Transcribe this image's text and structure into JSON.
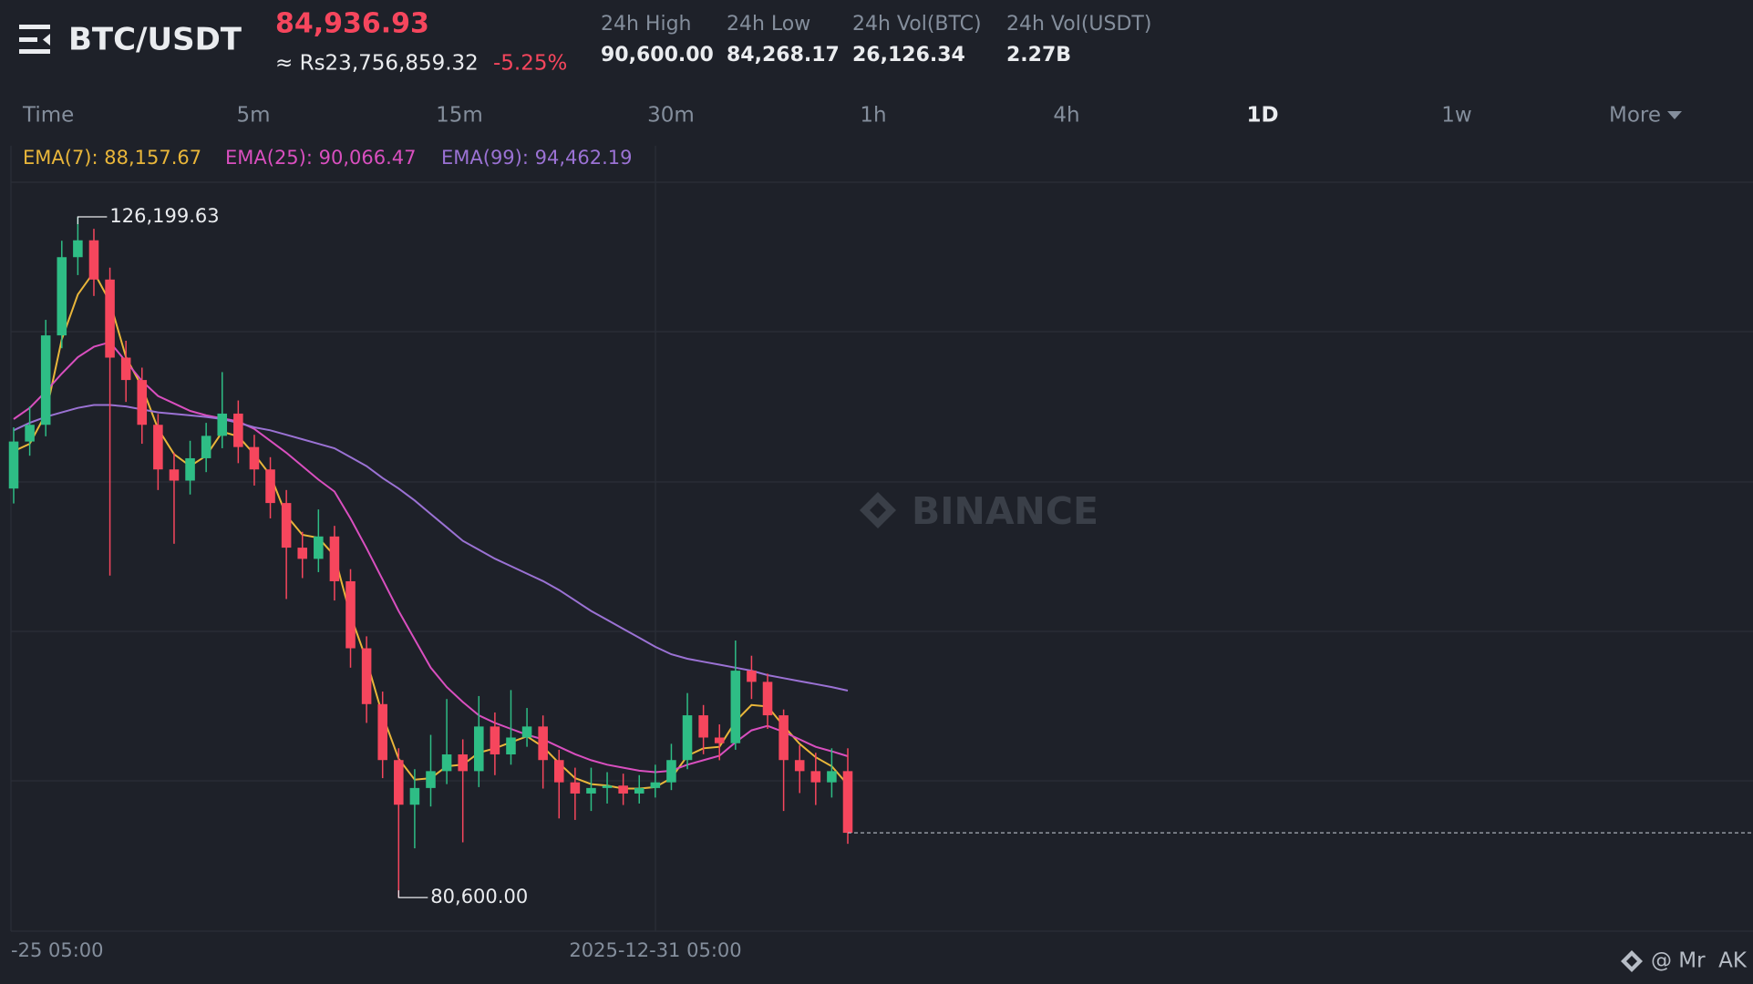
{
  "header": {
    "symbol": "BTC/USDT",
    "price": "84,936.93",
    "fiat_price": "≈ Rs23,756,859.32",
    "change": "-5.25%",
    "stats": [
      {
        "label": "24h High",
        "value": "90,600.00"
      },
      {
        "label": "24h Low",
        "value": "84,268.17"
      },
      {
        "label": "24h Vol(BTC)",
        "value": "26,126.34"
      },
      {
        "label": "24h Vol(USDT)",
        "value": "2.27B"
      }
    ]
  },
  "tabs": [
    "Time",
    "5m",
    "15m",
    "30m",
    "1h",
    "4h",
    "1D",
    "1w",
    "More"
  ],
  "active_tab": 6,
  "watermark": "BINANCE",
  "footer": "@ Mr  AK",
  "chart_data": {
    "type": "candlestick",
    "up_color": "#2ebd85",
    "down_color": "#f6465d",
    "ylim": [
      78350,
      128520
    ],
    "x_labels": [
      "-25 05:00",
      "2025-12-31 05:00"
    ],
    "max_label": "126,199.63",
    "min_label": "80,600.00",
    "candles": {
      "open": [
        108000,
        111150,
        112270,
        118260,
        123500,
        124630,
        122000,
        116770,
        115270,
        112270,
        109280,
        108530,
        110030,
        111530,
        113020,
        110780,
        109280,
        107030,
        104040,
        103290,
        104790,
        101790,
        97300,
        93560,
        89810,
        86820,
        87940,
        89070,
        90190,
        89070,
        92060,
        90190,
        91320,
        92060,
        89810,
        88320,
        87570,
        87940,
        88100,
        87570,
        87940,
        88320,
        89810,
        92810,
        91320,
        90940,
        95800,
        95050,
        92810,
        89810,
        89070,
        88320,
        89070
      ],
      "high": [
        112100,
        113500,
        119300,
        124600,
        126199.63,
        125400,
        122800,
        117900,
        116100,
        113000,
        110400,
        111200,
        112400,
        115800,
        113900,
        111600,
        110100,
        107900,
        105100,
        106600,
        105500,
        102600,
        98100,
        94400,
        90600,
        89200,
        91500,
        93900,
        91200,
        94100,
        93000,
        94500,
        93300,
        92800,
        90500,
        89300,
        89300,
        89000,
        88900,
        88800,
        89500,
        90900,
        94300,
        93500,
        92200,
        97820,
        96800,
        95600,
        93200,
        90800,
        90300,
        90600,
        90600
      ],
      "low": [
        107000,
        110200,
        111500,
        117400,
        122300,
        120900,
        102170,
        113800,
        111000,
        107900,
        104300,
        107600,
        109100,
        110700,
        109700,
        108200,
        106000,
        100600,
        102000,
        102400,
        100500,
        96000,
        92300,
        88600,
        80600,
        83900,
        86700,
        88200,
        84300,
        88000,
        88800,
        89500,
        90700,
        87900,
        85900,
        85800,
        86400,
        86900,
        86800,
        86900,
        87300,
        87800,
        89200,
        90200,
        89800,
        90500,
        93900,
        91900,
        86400,
        87600,
        86800,
        87300,
        84200
      ],
      "close": [
        111150,
        112270,
        118260,
        123500,
        124630,
        122000,
        116770,
        115270,
        112270,
        109280,
        108530,
        110030,
        111530,
        113020,
        110780,
        109280,
        107030,
        104040,
        103290,
        104790,
        101790,
        97300,
        93560,
        89810,
        86820,
        87940,
        89070,
        90190,
        89070,
        92060,
        90190,
        91320,
        92060,
        89810,
        88320,
        87570,
        87940,
        88100,
        87570,
        87940,
        88320,
        89810,
        92810,
        91320,
        90940,
        95800,
        95050,
        92810,
        89810,
        89070,
        88320,
        89070,
        84936.93
      ]
    },
    "ema": [
      {
        "name": "EMA(7): 88,157.67",
        "color": "#e9b63a",
        "values": [
          110500,
          111000,
          113000,
          118000,
          121000,
          122500,
          120500,
          116800,
          114800,
          112000,
          110300,
          109500,
          110200,
          111800,
          111500,
          110300,
          108900,
          106200,
          104900,
          104700,
          103500,
          99500,
          96500,
          92800,
          89900,
          88500,
          88600,
          89400,
          89500,
          90300,
          90600,
          91000,
          91400,
          90700,
          89600,
          88600,
          88200,
          88100,
          87900,
          87900,
          88000,
          88600,
          90100,
          90600,
          90700,
          92400,
          93500,
          93400,
          92100,
          90900,
          90000,
          89400,
          88157.67
        ]
      },
      {
        "name": "EMA(25): 90,066.47",
        "color": "#d94fbf",
        "values": [
          112650,
          113400,
          114500,
          115700,
          116800,
          117500,
          117800,
          116500,
          115200,
          114200,
          113700,
          113200,
          112900,
          112700,
          112500,
          112000,
          111200,
          110400,
          109500,
          108600,
          107800,
          106000,
          104000,
          101900,
          99800,
          97900,
          96000,
          94700,
          93700,
          92800,
          92300,
          91900,
          91500,
          91200,
          90700,
          90200,
          89800,
          89500,
          89300,
          89100,
          89000,
          89100,
          89500,
          89800,
          90100,
          91000,
          91800,
          92100,
          91700,
          91200,
          90700,
          90400,
          90066.47
        ]
      },
      {
        "name": "EMA(99): 94,462.19",
        "color": "#9b72d4",
        "values": [
          111900,
          112400,
          112800,
          113100,
          113400,
          113600,
          113600,
          113500,
          113300,
          113100,
          113000,
          112900,
          112800,
          112650,
          112400,
          112100,
          111900,
          111600,
          111300,
          111000,
          110700,
          110100,
          109500,
          108700,
          108000,
          107200,
          106300,
          105400,
          104500,
          103900,
          103300,
          102800,
          102300,
          101800,
          101200,
          100500,
          99800,
          99200,
          98600,
          98000,
          97400,
          96900,
          96600,
          96400,
          96200,
          96000,
          95800,
          95500,
          95300,
          95100,
          94900,
          94700,
          94462.19
        ]
      }
    ]
  }
}
